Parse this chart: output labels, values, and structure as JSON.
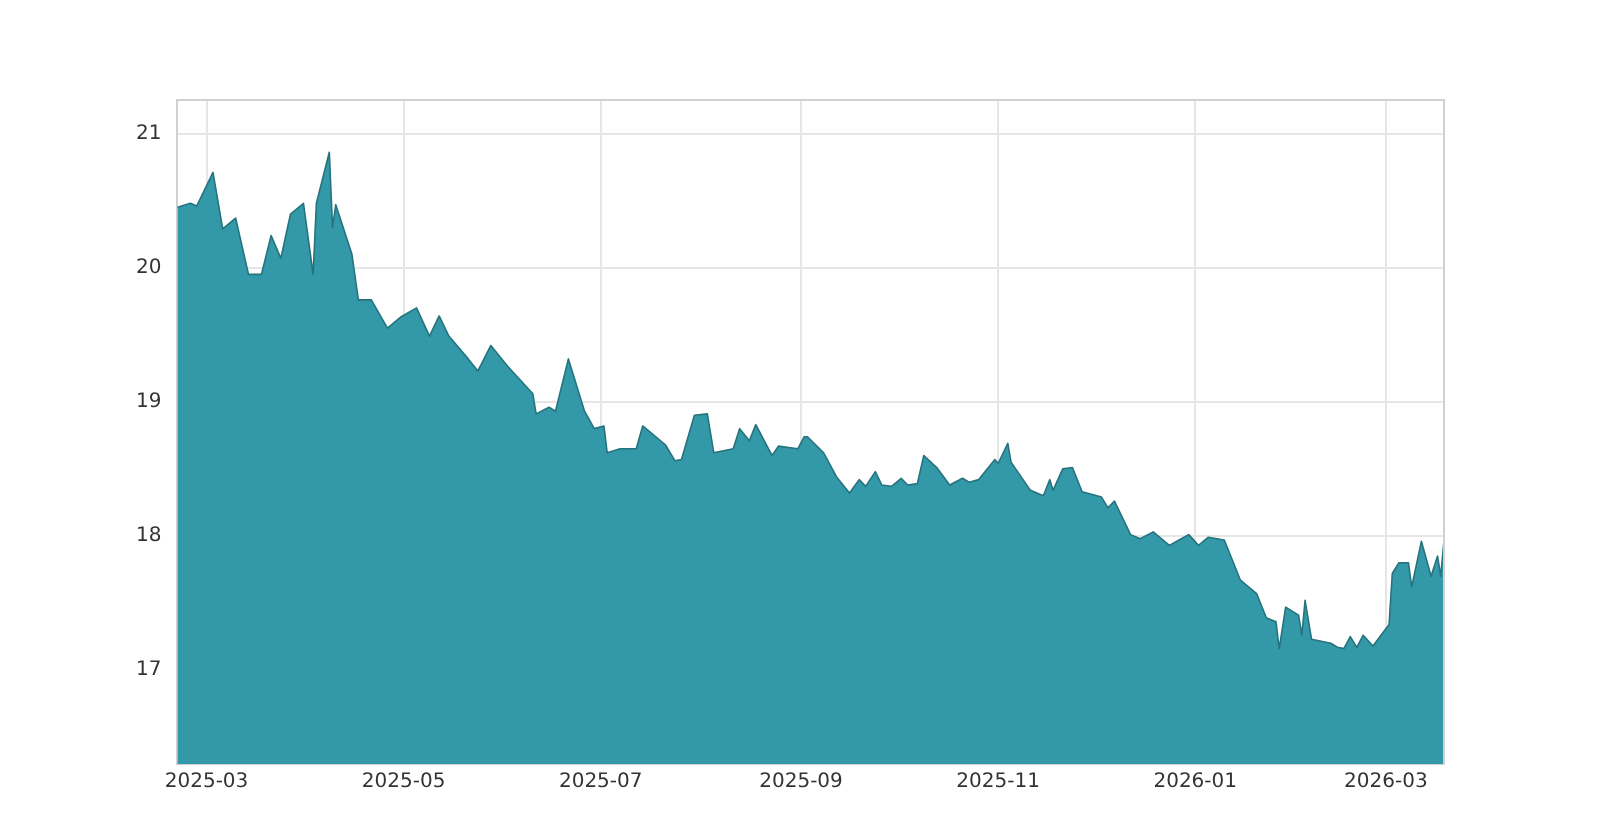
{
  "chart_data": {
    "type": "area",
    "x": [
      "2025-02-20",
      "2025-02-24",
      "2025-02-26",
      "2025-03-03",
      "2025-03-06",
      "2025-03-10",
      "2025-03-14",
      "2025-03-18",
      "2025-03-21",
      "2025-03-24",
      "2025-03-27",
      "2025-03-31",
      "2025-04-03",
      "2025-04-04",
      "2025-04-08",
      "2025-04-09",
      "2025-04-10",
      "2025-04-15",
      "2025-04-17",
      "2025-04-21",
      "2025-04-26",
      "2025-04-30",
      "2025-05-05",
      "2025-05-09",
      "2025-05-12",
      "2025-05-15",
      "2025-05-21",
      "2025-05-24",
      "2025-05-28",
      "2025-06-02",
      "2025-06-10",
      "2025-06-11",
      "2025-06-15",
      "2025-06-17",
      "2025-06-21",
      "2025-06-26",
      "2025-06-29",
      "2025-07-02",
      "2025-07-03",
      "2025-07-07",
      "2025-07-12",
      "2025-07-14",
      "2025-07-21",
      "2025-07-24",
      "2025-07-26",
      "2025-07-30",
      "2025-08-03",
      "2025-08-05",
      "2025-08-11",
      "2025-08-13",
      "2025-08-16",
      "2025-08-18",
      "2025-08-23",
      "2025-08-25",
      "2025-08-31",
      "2025-09-02",
      "2025-09-03",
      "2025-09-08",
      "2025-09-12",
      "2025-09-16",
      "2025-09-19",
      "2025-09-21",
      "2025-09-24",
      "2025-09-26",
      "2025-09-29",
      "2025-10-02",
      "2025-10-04",
      "2025-10-07",
      "2025-10-09",
      "2025-10-13",
      "2025-10-17",
      "2025-10-21",
      "2025-10-23",
      "2025-10-26",
      "2025-10-31",
      "2025-11-01",
      "2025-11-04",
      "2025-11-05",
      "2025-11-11",
      "2025-11-15",
      "2025-11-17",
      "2025-11-18",
      "2025-11-21",
      "2025-11-24",
      "2025-11-27",
      "2025-12-03",
      "2025-12-05",
      "2025-12-07",
      "2025-12-12",
      "2025-12-15",
      "2025-12-19",
      "2025-12-24",
      "2025-12-27",
      "2025-12-30",
      "2026-01-02",
      "2026-01-05",
      "2026-01-10",
      "2026-01-15",
      "2026-01-20",
      "2026-01-23",
      "2026-01-26",
      "2026-01-27",
      "2026-01-29",
      "2026-02-02",
      "2026-02-03",
      "2026-02-04",
      "2026-02-06",
      "2026-02-12",
      "2026-02-14",
      "2026-02-16",
      "2026-02-18",
      "2026-02-20",
      "2026-02-22",
      "2026-02-25",
      "2026-03-02",
      "2026-03-03",
      "2026-03-05",
      "2026-03-08",
      "2026-03-09",
      "2026-03-12",
      "2026-03-15",
      "2026-03-17",
      "2026-03-18",
      "2026-03-19"
    ],
    "series": [
      {
        "color": "#3399a8",
        "values": [
          20.45,
          20.48,
          20.46,
          20.71,
          20.29,
          20.37,
          19.95,
          19.95,
          20.24,
          20.07,
          20.4,
          20.48,
          19.95,
          20.48,
          20.86,
          20.3,
          20.47,
          20.1,
          19.76,
          19.76,
          19.55,
          19.63,
          19.7,
          19.49,
          19.64,
          19.49,
          19.32,
          19.23,
          19.42,
          19.27,
          19.06,
          18.91,
          18.96,
          18.93,
          19.32,
          18.93,
          18.8,
          18.82,
          18.62,
          18.65,
          18.65,
          18.82,
          18.68,
          18.56,
          18.57,
          18.9,
          18.91,
          18.62,
          18.65,
          18.8,
          18.71,
          18.83,
          18.6,
          18.67,
          18.65,
          18.74,
          18.74,
          18.62,
          18.44,
          18.32,
          18.42,
          18.37,
          18.48,
          18.38,
          18.37,
          18.43,
          18.38,
          18.39,
          18.6,
          18.51,
          18.38,
          18.43,
          18.4,
          18.42,
          18.57,
          18.54,
          18.69,
          18.55,
          18.34,
          18.3,
          18.42,
          18.34,
          18.5,
          18.51,
          18.33,
          18.29,
          18.21,
          18.26,
          18.01,
          17.98,
          18.03,
          17.93,
          17.97,
          18.01,
          17.93,
          17.99,
          17.97,
          17.67,
          17.57,
          17.39,
          17.36,
          17.16,
          17.47,
          17.41,
          17.26,
          17.52,
          17.23,
          17.2,
          17.17,
          17.16,
          17.25,
          17.17,
          17.26,
          17.18,
          17.34,
          17.72,
          17.8,
          17.8,
          17.62,
          17.96,
          17.7,
          17.85,
          17.7,
          17.97
        ]
      }
    ],
    "xlim": [
      "2025-02-20",
      "2026-03-19"
    ],
    "xticks": [
      "2025-03",
      "2025-05",
      "2025-07",
      "2025-09",
      "2025-11",
      "2026-01",
      "2026-03"
    ],
    "ylim": [
      16.3,
      21.25
    ],
    "yticks": [
      17,
      18,
      19,
      20,
      21
    ],
    "grid": true
  }
}
